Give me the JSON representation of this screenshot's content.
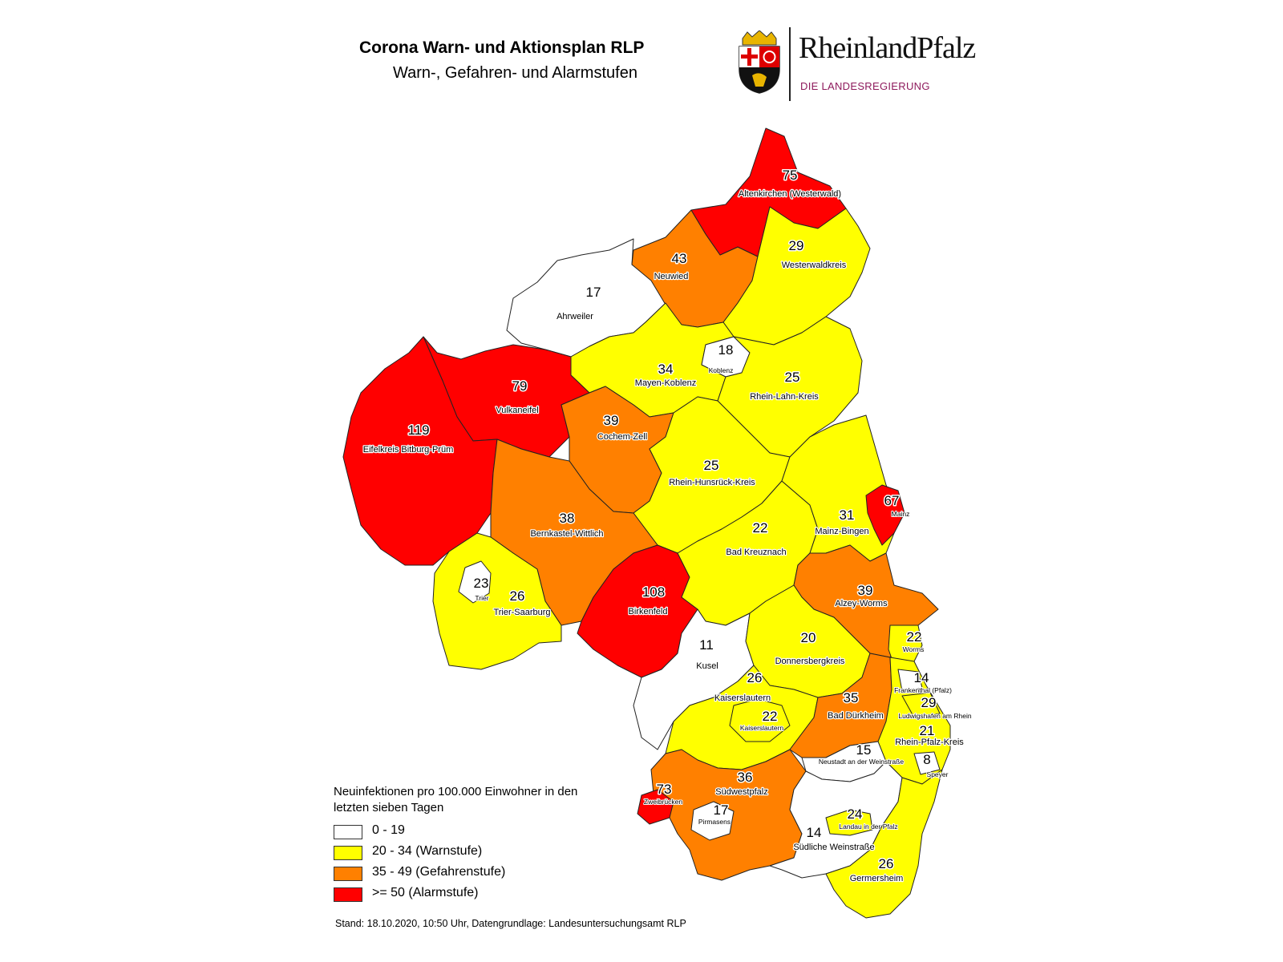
{
  "header": {
    "title": "Corona Warn- und Aktionsplan RLP",
    "subtitle": "Warn-, Gefahren- und Alarmstufen"
  },
  "logo": {
    "name": "RheinlandPfalz",
    "sub": "DIE LANDESREGIERUNG",
    "crest_icon": "coat-of-arms-icon",
    "sub_color": "#8e1a5c"
  },
  "legend": {
    "title": "Neuinfektionen pro 100.000 Einwohner in den letzten sieben Tagen",
    "items": [
      {
        "label": "0 - 19",
        "color": "#ffffff"
      },
      {
        "label": "20 - 34 (Warnstufe)",
        "color": "#ffff00"
      },
      {
        "label": "35 - 49 (Gefahrenstufe)",
        "color": "#ff8000"
      },
      {
        "label": ">= 50 (Alarmstufe)",
        "color": "#ff0000"
      }
    ]
  },
  "districts": [
    {
      "name": "Altenkirchen (Westerwald)",
      "value": "75"
    },
    {
      "name": "Westerwaldkreis",
      "value": "29"
    },
    {
      "name": "Neuwied",
      "value": "43"
    },
    {
      "name": "Ahrweiler",
      "value": "17"
    },
    {
      "name": "Koblenz",
      "value": "18"
    },
    {
      "name": "Mayen-Koblenz",
      "value": "34"
    },
    {
      "name": "Rhein-Lahn-Kreis",
      "value": "25"
    },
    {
      "name": "Vulkaneifel",
      "value": "79"
    },
    {
      "name": "Eifelkreis Bitburg-Prüm",
      "value": "119"
    },
    {
      "name": "Cochem-Zell",
      "value": "39"
    },
    {
      "name": "Rhein-Hunsrück-Kreis",
      "value": "25"
    },
    {
      "name": "Mainz",
      "value": "67"
    },
    {
      "name": "Mainz-Bingen",
      "value": "31"
    },
    {
      "name": "Bernkastel-Wittlich",
      "value": "38"
    },
    {
      "name": "Bad Kreuznach",
      "value": "22"
    },
    {
      "name": "Trier",
      "value": "23"
    },
    {
      "name": "Trier-Saarburg",
      "value": "26"
    },
    {
      "name": "Birkenfeld",
      "value": "108"
    },
    {
      "name": "Alzey-Worms",
      "value": "39"
    },
    {
      "name": "Worms",
      "value": "22"
    },
    {
      "name": "Kusel",
      "value": "11"
    },
    {
      "name": "Donnersbergkreis",
      "value": "20"
    },
    {
      "name": "Frankenthal (Pfalz)",
      "value": "14"
    },
    {
      "name": "Kaiserslautern",
      "value": "26"
    },
    {
      "name": "Bad Dürkheim",
      "value": "35"
    },
    {
      "name": "Ludwigshafen am Rhein",
      "value": "29"
    },
    {
      "name": "Kaiserslautern",
      "value": "22"
    },
    {
      "name": "Rhein-Pfalz-Kreis",
      "value": "21"
    },
    {
      "name": "Neustadt an der Weinstraße",
      "value": "15"
    },
    {
      "name": "Speyer",
      "value": "8"
    },
    {
      "name": "Südwestpfalz",
      "value": "36"
    },
    {
      "name": "Zweibrücken",
      "value": "73"
    },
    {
      "name": "Pirmasens",
      "value": "17"
    },
    {
      "name": "Landau in der Pfalz",
      "value": "24"
    },
    {
      "name": "Südliche Weinstraße",
      "value": "14"
    },
    {
      "name": "Germersheim",
      "value": "26"
    }
  ],
  "footer": "Stand: 18.10.2020, 10:50 Uhr, Datengrundlage: Landesuntersuchungsamt RLP"
}
